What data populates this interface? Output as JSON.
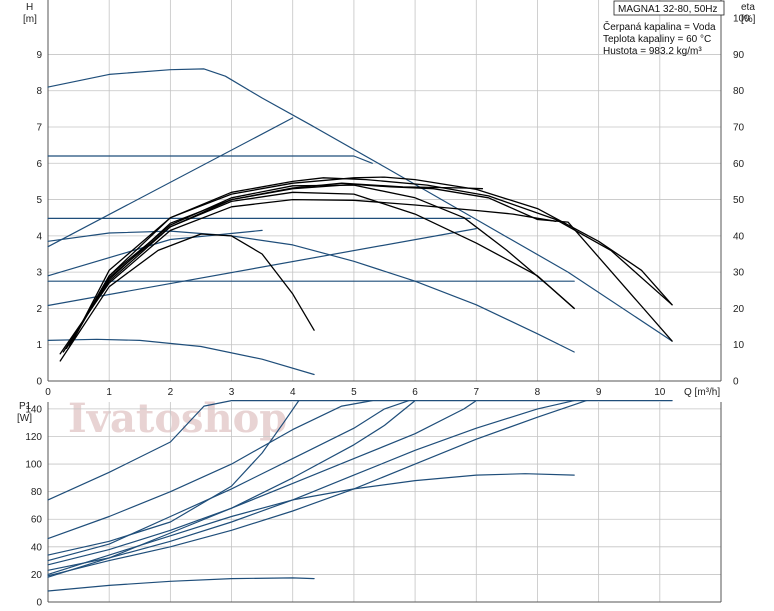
{
  "title": "MAGNA1 32-80, 50Hz",
  "info_lines": [
    "Čerpaná kapalina = Voda",
    "Teplota kapaliny = 60 °C",
    "Hustota = 983.2 kg/m³"
  ],
  "watermark": "Ivatoshop",
  "colors": {
    "system": "#1f4e7a",
    "qh": "#000000",
    "grid": "#c4c4c4",
    "axis": "#555555"
  },
  "chart_data": [
    {
      "type": "line",
      "x_label": "Q [m³/h]",
      "y_label_lines": [
        "H",
        "[m]"
      ],
      "y2_label_lines": [
        "eta",
        "[%]"
      ],
      "xlim": [
        0,
        11
      ],
      "ylim": [
        0,
        10.5
      ],
      "y2lim": [
        0,
        105
      ],
      "x_ticks": [
        0,
        1,
        2,
        3,
        4,
        5,
        6,
        7,
        8,
        9,
        10
      ],
      "y_ticks": [
        0,
        1,
        2,
        3,
        4,
        5,
        6,
        7,
        8,
        9
      ],
      "y2_ticks": [
        0,
        10,
        20,
        30,
        40,
        50,
        60,
        70,
        80,
        90,
        100
      ],
      "series": [
        {
          "style": "system",
          "points": [
            [
              0,
              8.1
            ],
            [
              1,
              8.45
            ],
            [
              2,
              8.58
            ],
            [
              2.55,
              8.6
            ],
            [
              2.9,
              8.4
            ],
            [
              3.5,
              7.8
            ],
            [
              4.3,
              7.05
            ],
            [
              5.5,
              5.9
            ],
            [
              7,
              4.45
            ],
            [
              8.5,
              3.0
            ],
            [
              10.2,
              1.1
            ]
          ]
        },
        {
          "style": "system",
          "points": [
            [
              0,
              3.7
            ],
            [
              4,
              7.25
            ]
          ]
        },
        {
          "style": "system",
          "points": [
            [
              0,
              6.2
            ],
            [
              5,
              6.2
            ],
            [
              5.3,
              6.0
            ]
          ]
        },
        {
          "style": "system",
          "points": [
            [
              0,
              4.48
            ],
            [
              6.9,
              4.48
            ]
          ]
        },
        {
          "style": "system",
          "points": [
            [
              0,
              2.75
            ],
            [
              8.6,
              2.75
            ]
          ]
        },
        {
          "style": "system",
          "points": [
            [
              0,
              2.08
            ],
            [
              7,
              4.2
            ]
          ]
        },
        {
          "style": "system",
          "points": [
            [
              0,
              2.9
            ],
            [
              2,
              3.9
            ],
            [
              3.5,
              4.15
            ]
          ]
        },
        {
          "style": "system",
          "points": [
            [
              0,
              3.85
            ],
            [
              1,
              4.08
            ],
            [
              2,
              4.13
            ],
            [
              3,
              4.0
            ],
            [
              4,
              3.75
            ],
            [
              5,
              3.3
            ],
            [
              6,
              2.75
            ],
            [
              7,
              2.1
            ],
            [
              8,
              1.3
            ],
            [
              8.6,
              0.8
            ]
          ]
        },
        {
          "style": "system",
          "points": [
            [
              0,
              1.12
            ],
            [
              0.8,
              1.15
            ],
            [
              1.5,
              1.12
            ],
            [
              2.5,
              0.95
            ],
            [
              3.5,
              0.6
            ],
            [
              4.35,
              0.18
            ]
          ]
        },
        {
          "style": "qh",
          "points": [
            [
              0.35,
              0.95
            ],
            [
              1,
              2.9
            ],
            [
              2,
              4.5
            ],
            [
              3,
              5.15
            ],
            [
              4,
              5.45
            ],
            [
              5,
              5.6
            ],
            [
              5.5,
              5.62
            ],
            [
              6,
              5.55
            ],
            [
              7,
              5.28
            ],
            [
              8,
              4.75
            ],
            [
              9,
              3.85
            ],
            [
              9.7,
              3.05
            ],
            [
              10.2,
              2.1
            ]
          ]
        },
        {
          "style": "qh",
          "points": [
            [
              0.3,
              0.9
            ],
            [
              1,
              2.8
            ],
            [
              2,
              4.35
            ],
            [
              3,
              5.0
            ],
            [
              4,
              5.3
            ],
            [
              5,
              5.42
            ],
            [
              5.6,
              5.35
            ],
            [
              6.3,
              5.3
            ],
            [
              7.2,
              5.05
            ],
            [
              8,
              4.45
            ],
            [
              8.5,
              4.38
            ],
            [
              10.2,
              1.1
            ]
          ]
        },
        {
          "style": "qh",
          "points": [
            [
              0.2,
              0.75
            ],
            [
              1,
              2.7
            ],
            [
              2,
              4.15
            ],
            [
              3,
              4.8
            ],
            [
              4,
              5.0
            ],
            [
              5,
              4.98
            ],
            [
              6,
              4.85
            ],
            [
              7,
              4.7
            ],
            [
              7.6,
              4.6
            ],
            [
              8.3,
              4.4
            ]
          ]
        },
        {
          "style": "qh",
          "points": [
            [
              0.25,
              0.8
            ],
            [
              1,
              2.75
            ],
            [
              2,
              4.25
            ],
            [
              3,
              5.0
            ],
            [
              4,
              5.32
            ],
            [
              4.8,
              5.45
            ],
            [
              5.8,
              5.35
            ],
            [
              6.8,
              5.32
            ],
            [
              7.1,
              5.3
            ]
          ]
        },
        {
          "style": "qh",
          "points": [
            [
              0.3,
              0.9
            ],
            [
              1,
              2.85
            ],
            [
              2,
              4.25
            ],
            [
              3,
              4.95
            ],
            [
              4,
              5.2
            ],
            [
              5,
              5.15
            ],
            [
              6,
              4.6
            ],
            [
              7,
              3.8
            ],
            [
              8,
              2.9
            ],
            [
              8.6,
              2.0
            ]
          ]
        },
        {
          "style": "qh",
          "points": [
            [
              0.35,
              1.0
            ],
            [
              1,
              2.9
            ],
            [
              2,
              4.3
            ],
            [
              3,
              5.05
            ],
            [
              4,
              5.38
            ],
            [
              5,
              5.4
            ],
            [
              6,
              5.05
            ],
            [
              6.8,
              4.5
            ],
            [
              7.5,
              3.6
            ],
            [
              8.2,
              2.6
            ],
            [
              8.6,
              2.0
            ]
          ]
        },
        {
          "style": "qh",
          "points": [
            [
              0.2,
              0.55
            ],
            [
              1,
              2.6
            ],
            [
              1.8,
              3.6
            ],
            [
              2.5,
              4.05
            ],
            [
              3,
              4.0
            ],
            [
              3.5,
              3.5
            ],
            [
              4,
              2.4
            ],
            [
              4.35,
              1.4
            ]
          ]
        },
        {
          "style": "qh",
          "points": [
            [
              0.4,
              1.1
            ],
            [
              1,
              3.05
            ],
            [
              2,
              4.5
            ],
            [
              3,
              5.2
            ],
            [
              4,
              5.5
            ],
            [
              4.5,
              5.6
            ],
            [
              5.2,
              5.55
            ],
            [
              6.2,
              5.4
            ],
            [
              7.2,
              5.1
            ],
            [
              8.3,
              4.45
            ],
            [
              9.2,
              3.6
            ],
            [
              10.2,
              2.1
            ]
          ]
        }
      ]
    },
    {
      "type": "line",
      "y_label_lines": [
        "P1",
        "[W]"
      ],
      "xlim": [
        0,
        11
      ],
      "ylim": [
        0,
        145
      ],
      "x_ticks": [],
      "y_ticks": [
        0,
        20,
        40,
        60,
        80,
        100,
        120,
        140
      ],
      "series": [
        {
          "style": "system",
          "points": [
            [
              0,
              74
            ],
            [
              1,
              94
            ],
            [
              2,
              116
            ],
            [
              2.55,
              142
            ],
            [
              3,
              146
            ],
            [
              10.2,
              146
            ]
          ]
        },
        {
          "style": "system",
          "points": [
            [
              0,
              46
            ],
            [
              1,
              62
            ],
            [
              2,
              80
            ],
            [
              3,
              100
            ],
            [
              4,
              125
            ],
            [
              4.8,
              142
            ],
            [
              5.3,
              146
            ]
          ]
        },
        {
          "style": "system",
          "points": [
            [
              0,
              34
            ],
            [
              1,
              44
            ],
            [
              2,
              58
            ],
            [
              3,
              84
            ],
            [
              3.5,
              108
            ],
            [
              3.85,
              130
            ],
            [
              4.1,
              146
            ]
          ]
        },
        {
          "style": "system",
          "points": [
            [
              0,
              30
            ],
            [
              1,
              42
            ],
            [
              2,
              62
            ],
            [
              3,
              82
            ],
            [
              4,
              104
            ],
            [
              5,
              126
            ],
            [
              5.5,
              140
            ],
            [
              5.9,
              146
            ]
          ]
        },
        {
          "style": "system",
          "points": [
            [
              0,
              27
            ],
            [
              1,
              38
            ],
            [
              2,
              52
            ],
            [
              3,
              68
            ],
            [
              4,
              86
            ],
            [
              5,
              104
            ],
            [
              6,
              122
            ],
            [
              6.8,
              140
            ],
            [
              7,
              146
            ]
          ]
        },
        {
          "style": "system",
          "points": [
            [
              0,
              23
            ],
            [
              1,
              32
            ],
            [
              2,
              44
            ],
            [
              3,
              58
            ],
            [
              4,
              74
            ],
            [
              5,
              92
            ],
            [
              6,
              110
            ],
            [
              7,
              126
            ],
            [
              8,
              140
            ],
            [
              8.6,
              146
            ]
          ]
        },
        {
          "style": "system",
          "points": [
            [
              0,
              19
            ],
            [
              1,
              30
            ],
            [
              2,
              40
            ],
            [
              3,
              52
            ],
            [
              4,
              66
            ],
            [
              5,
              82
            ],
            [
              6,
              100
            ],
            [
              7,
              118
            ],
            [
              8,
              134
            ],
            [
              8.8,
              146
            ]
          ]
        },
        {
          "style": "system",
          "points": [
            [
              0,
              18
            ],
            [
              1,
              32
            ],
            [
              2,
              50
            ],
            [
              3,
              68
            ],
            [
              4,
              90
            ],
            [
              5,
              114
            ],
            [
              5.5,
              128
            ],
            [
              6,
              146
            ]
          ]
        },
        {
          "style": "system",
          "points": [
            [
              0,
              20
            ],
            [
              1,
              34
            ],
            [
              2,
              48
            ],
            [
              3,
              62
            ],
            [
              4,
              74
            ],
            [
              5,
              82
            ],
            [
              6,
              88
            ],
            [
              7,
              92
            ],
            [
              7.8,
              93
            ],
            [
              8.6,
              92
            ]
          ]
        },
        {
          "style": "system",
          "points": [
            [
              0,
              8
            ],
            [
              1,
              12
            ],
            [
              2,
              15
            ],
            [
              3,
              17
            ],
            [
              4,
              17.5
            ],
            [
              4.35,
              17
            ]
          ]
        }
      ]
    }
  ]
}
